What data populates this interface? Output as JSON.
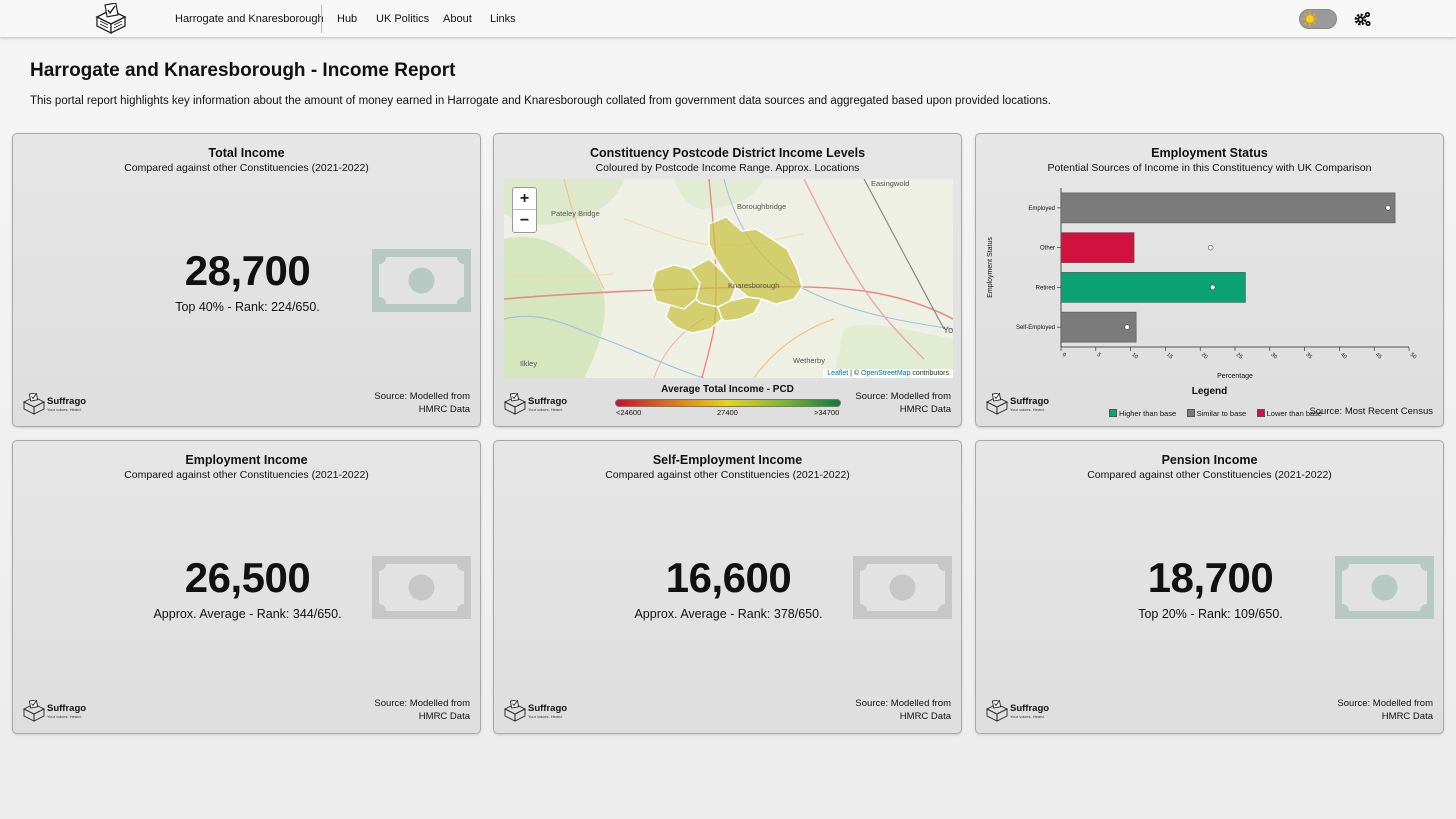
{
  "nav": {
    "logo_icon": "ballot-box-icon",
    "constituency": "Harrogate and Knaresborough",
    "links": [
      "Hub",
      "UK Politics",
      "About",
      "Links"
    ],
    "theme_toggle_icon": "sun-icon",
    "settings_icon": "gears-icon"
  },
  "header": {
    "title": "Harrogate and Knaresborough - Income Report",
    "intro": "This portal report highlights key information about the amount of money earned in Harrogate and Knaresborough collated from government data sources and aggregated based upon provided locations."
  },
  "brand": {
    "name": "Suffrago",
    "tagline": "Your voices. Heard."
  },
  "cards": {
    "total": {
      "title": "Total Income",
      "subtitle": "Compared against other Constituencies (2021-2022)",
      "value": "28,700",
      "rank": "Top 40% - Rank: 224/650.",
      "icon_color": "#b7c9c3",
      "source_line1": "Source: Modelled from",
      "source_line2": "HMRC Data"
    },
    "map": {
      "title": "Constituency Postcode District Income Levels",
      "subtitle": "Coloured by Postcode Income Range. Approx. Locations",
      "zoom_in": "+",
      "zoom_out": "−",
      "places": [
        "Easingwold",
        "Pateley Bridge",
        "Boroughbridge",
        "Knaresborough",
        "Ilkley",
        "Wetherby",
        "Yo"
      ],
      "attrib_leaflet": "Leaflet",
      "attrib_sep": "| ©",
      "attrib_osm": "OpenStreetMap",
      "attrib_tail": "contributors",
      "scale_title": "Average Total Income - PCD",
      "scale_low": "<24600",
      "scale_mid": "27400",
      "scale_high": ">34700",
      "source_line1": "Source: Modelled from",
      "source_line2": "HMRC Data"
    },
    "employment_status": {
      "title": "Employment Status",
      "subtitle": "Potential Sources of Income in this Constituency with UK Comparison",
      "legend_title": "Legend",
      "legend": [
        {
          "label": "Higher than base",
          "color": "#0aa271"
        },
        {
          "label": "Similar to base",
          "color": "#7b7b7b"
        },
        {
          "label": "Lower than base",
          "color": "#d1123f"
        }
      ],
      "source": "Source: Most Recent Census"
    },
    "employment": {
      "title": "Employment Income",
      "subtitle": "Compared against other Constituencies (2021-2022)",
      "value": "26,500",
      "rank": "Approx. Average - Rank: 344/650.",
      "icon_color": "#c7c7c7",
      "source_line1": "Source: Modelled from",
      "source_line2": "HMRC Data"
    },
    "self_employment": {
      "title": "Self-Employment Income",
      "subtitle": "Compared against other Constituencies (2021-2022)",
      "value": "16,600",
      "rank": "Approx. Average - Rank: 378/650.",
      "icon_color": "#c7c7c7",
      "source_line1": "Source: Modelled from",
      "source_line2": "HMRC Data"
    },
    "pension": {
      "title": "Pension Income",
      "subtitle": "Compared against other Constituencies (2021-2022)",
      "value": "18,700",
      "rank": "Top 20% - Rank: 109/650.",
      "icon_color": "#b7c9c3",
      "source_line1": "Source: Modelled from",
      "source_line2": "HMRC Data"
    }
  },
  "chart_data": {
    "type": "bar",
    "orientation": "horizontal",
    "categories": [
      "Employed",
      "Other",
      "Retired",
      "Self-Employed"
    ],
    "series": [
      {
        "values": [
          48,
          10.5,
          26.5,
          10.8
        ],
        "colors": [
          "#7b7b7b",
          "#d1123f",
          "#0aa271",
          "#7b7b7b"
        ]
      }
    ],
    "uk_base": [
      47,
      21.5,
      21.8,
      9.5
    ],
    "xlabel": "Percentage",
    "ylabel": "Employment Status",
    "xlim": [
      0,
      50
    ],
    "xticks": [
      0,
      5,
      10,
      15,
      20,
      25,
      30,
      35,
      40,
      45,
      50
    ]
  }
}
